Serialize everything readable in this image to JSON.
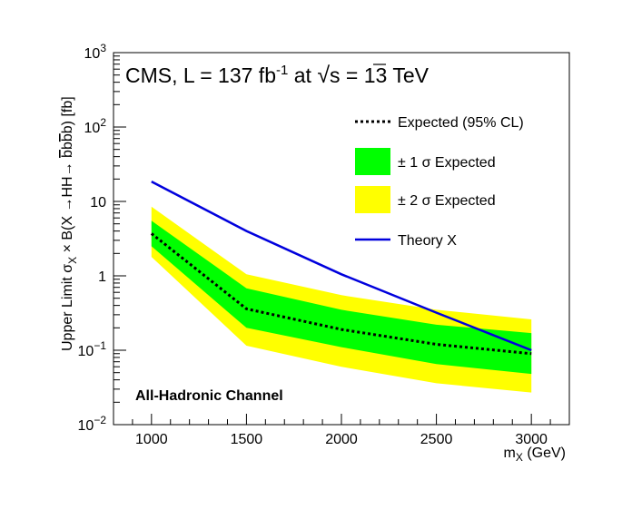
{
  "chart_data": {
    "type": "line",
    "title": "CMS, L = 137 fb⁻¹ at √s = 13 TeV",
    "title_parts": {
      "prefix": "CMS, L = 137 fb",
      "superscript": "-1",
      "mid": " at  ",
      "sqrt_symbol": "√",
      "s": "s",
      "suffix": " = 13 TeV"
    },
    "annotation": "All-Hadronic Channel",
    "xlabel": "m_X (GeV)",
    "xlabel_parts": {
      "m": "m",
      "sub": "X",
      "unit": " (GeV)"
    },
    "ylabel": "Upper Limit  σ_X × B(X→HH→ b̅bb̅b) [fb]",
    "ylabel_parts": {
      "prefix": "Upper Limit  ",
      "sigma": "σ",
      "sub": "X",
      "rest": " × B(X →HH→ ",
      "bbar1": "b",
      "b1": "b",
      "bbar2": "b",
      "b2": "b",
      "close": ") [fb]"
    },
    "xlim": [
      800,
      3200
    ],
    "ylim": [
      0.01,
      1000
    ],
    "yscale": "log",
    "x_ticks": [
      1000,
      1500,
      2000,
      2500,
      3000
    ],
    "x_tick_labels": [
      "1000",
      "1500",
      "2000",
      "2500",
      "3000"
    ],
    "y_tick_labels": [
      {
        "value": 0.01,
        "base": "10",
        "exp": "−2"
      },
      {
        "value": 0.1,
        "base": "10",
        "exp": "−1"
      },
      {
        "value": 1,
        "base": "1",
        "exp": ""
      },
      {
        "value": 10,
        "base": "10",
        "exp": ""
      },
      {
        "value": 100,
        "base": "10",
        "exp": "2"
      },
      {
        "value": 1000,
        "base": "10",
        "exp": "3"
      }
    ],
    "x": [
      1000,
      1500,
      2000,
      2500,
      3000
    ],
    "series": [
      {
        "name": "Expected (95% CL)",
        "style": "dotted",
        "color": "#000000",
        "values": [
          3.7,
          0.36,
          0.19,
          0.12,
          0.09
        ]
      },
      {
        "name": "± 1 σ Expected",
        "style": "band",
        "color": "#00ff00",
        "lower": [
          2.5,
          0.2,
          0.11,
          0.065,
          0.048
        ],
        "upper": [
          5.5,
          0.68,
          0.35,
          0.22,
          0.17
        ]
      },
      {
        "name": "± 2 σ Expected",
        "style": "band",
        "color": "#ffff00",
        "lower": [
          1.8,
          0.115,
          0.06,
          0.036,
          0.027
        ],
        "upper": [
          8.5,
          1.05,
          0.55,
          0.35,
          0.26
        ]
      },
      {
        "name": "Theory X",
        "style": "line",
        "color": "#0000dd",
        "values": [
          18.5,
          4.0,
          1.05,
          0.32,
          0.1
        ]
      }
    ],
    "legend": [
      {
        "label": "Expected (95% CL)",
        "kind": "dotted",
        "color": "#000000"
      },
      {
        "label": "± 1 σ Expected",
        "kind": "box",
        "color": "#00ff00"
      },
      {
        "label": "± 2 σ Expected",
        "kind": "box",
        "color": "#ffff00"
      },
      {
        "label": "Theory X",
        "kind": "line",
        "color": "#0000dd"
      }
    ],
    "legend_position": "top-right",
    "grid": false
  }
}
